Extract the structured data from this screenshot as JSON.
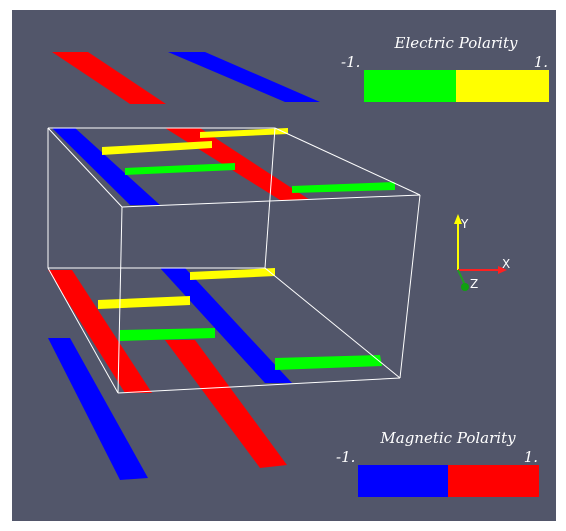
{
  "legends": {
    "electric": {
      "title": "Electric Polarity",
      "min_label": "-1.",
      "max_label": "1."
    },
    "magnetic": {
      "title": "Magnetic Polarity",
      "min_label": "-1.",
      "max_label": "1."
    }
  },
  "axes": {
    "x": "X",
    "y": "Y",
    "z": "Z"
  }
}
